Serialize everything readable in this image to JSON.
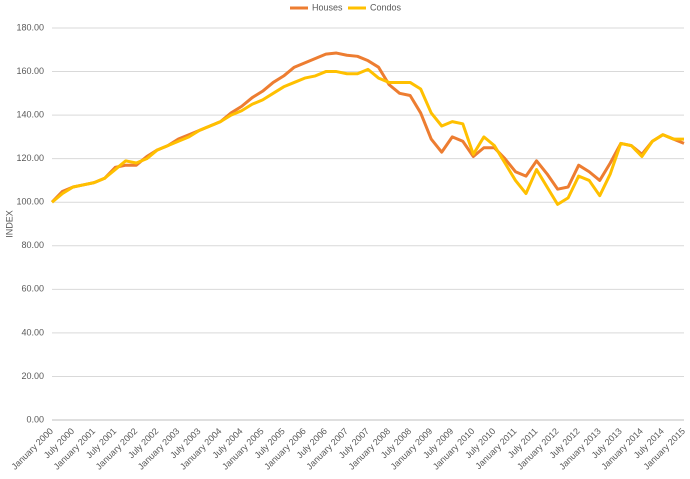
{
  "chart_data": {
    "type": "line",
    "y_label": "INDEX",
    "legend": "top",
    "grid": true,
    "categories": [
      "January 2000",
      null,
      "July 2000",
      null,
      "January 2001",
      null,
      "July 2001",
      null,
      "January 2002",
      null,
      "July 2002",
      null,
      "January 2003",
      null,
      "July 2003",
      null,
      "January 2004",
      null,
      "July 2004",
      null,
      "January 2005",
      null,
      "July 2005",
      null,
      "January 2006",
      null,
      "July 2006",
      null,
      "January 2007",
      null,
      "July 2007",
      null,
      "January 2008",
      null,
      "July 2008",
      null,
      "January 2009",
      null,
      "July 2009",
      null,
      "January 2010",
      null,
      "July 2010",
      null,
      "January 2011",
      null,
      "July 2011",
      null,
      "January 2012",
      null,
      "July 2012",
      null,
      "January 2013",
      null,
      "July 2013",
      null,
      "January 2014",
      null,
      "July 2014",
      null,
      "January 2015"
    ],
    "series": [
      {
        "name": "Houses",
        "color": "#ed7d31",
        "values": [
          100,
          105,
          107,
          108,
          109,
          111,
          116,
          117,
          117,
          121,
          124,
          126,
          129,
          131,
          133,
          135,
          137,
          141,
          144,
          148,
          151,
          155,
          158,
          162,
          164,
          166,
          168,
          168.5,
          167.5,
          167,
          165,
          162,
          154,
          150,
          149,
          141,
          129,
          123,
          130,
          128,
          121,
          125,
          125,
          120,
          114,
          112,
          119,
          113,
          106,
          107,
          117,
          114,
          110,
          118,
          127,
          126,
          122,
          128,
          131,
          129,
          127
        ]
      },
      {
        "name": "Condos",
        "color": "#ffc000",
        "values": [
          100,
          104,
          107,
          108,
          109,
          111,
          115,
          119,
          118,
          120,
          124,
          126,
          128,
          130,
          133,
          135,
          137,
          140,
          142,
          145,
          147,
          150,
          153,
          155,
          157,
          158,
          160,
          160,
          159,
          159,
          161,
          157,
          155,
          155,
          155,
          152,
          141,
          135,
          137,
          136,
          122,
          130,
          126,
          118,
          110,
          104,
          115,
          107,
          99,
          102,
          112,
          110,
          103,
          113,
          127,
          126,
          121,
          128,
          131,
          129,
          129
        ]
      }
    ],
    "ylim": [
      0,
      180
    ],
    "yticks": [
      {
        "value": 0,
        "label": "0.00"
      },
      {
        "value": 20,
        "label": "20.00"
      },
      {
        "value": 40,
        "label": "40.00"
      },
      {
        "value": 60,
        "label": "60.00"
      },
      {
        "value": 80,
        "label": "80.00"
      },
      {
        "value": 100,
        "label": "100.00"
      },
      {
        "value": 120,
        "label": "120.00"
      },
      {
        "value": 140,
        "label": "140.00"
      },
      {
        "value": 160,
        "label": "160.00"
      },
      {
        "value": 180,
        "label": "180.00"
      }
    ]
  }
}
